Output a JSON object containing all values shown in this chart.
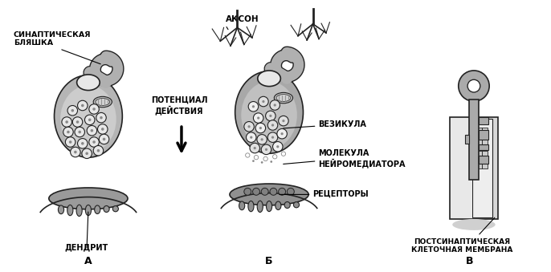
{
  "background_color": "#ffffff",
  "fig_width": 6.86,
  "fig_height": 3.39,
  "dpi": 100,
  "labels": {
    "synaptic_plaque": "СИНАПТИЧЕСКАЯ\nБЛЯШКА",
    "axon": "АКСОН",
    "action_potential": "ПОТЕНЦИАЛ\nДЕЙСТВИЯ",
    "dendrite": "ДЕНДРИТ",
    "vesicle": "ВЕЗИКУЛА",
    "neurotransmitter": "МОЛЕКУЛА\nНЕЙРОМЕДИАТОРА",
    "receptors": "РЕЦЕПТОРЫ",
    "postsynaptic": "ПОСТСИНАПТИЧЕСКАЯ\nКЛЕТОЧНАЯ МЕМБРАНА",
    "label_a": "А",
    "label_b": "Б",
    "label_v": "В"
  },
  "colors": {
    "dark_gray": "#555555",
    "mid_gray": "#888888",
    "body_outer": "#b0b0b0",
    "body_inner": "#c8c8c8",
    "body_light": "#d8d8d8",
    "neck_light": "#e8e8e8",
    "dendrite_gray": "#909090",
    "outline": "#222222",
    "white": "#ffffff",
    "vesicle_fill": "#e0e0e0",
    "key_gray": "#aaaaaa",
    "key_light": "#d0d0d0",
    "lock_fill": "#eeeeee"
  }
}
